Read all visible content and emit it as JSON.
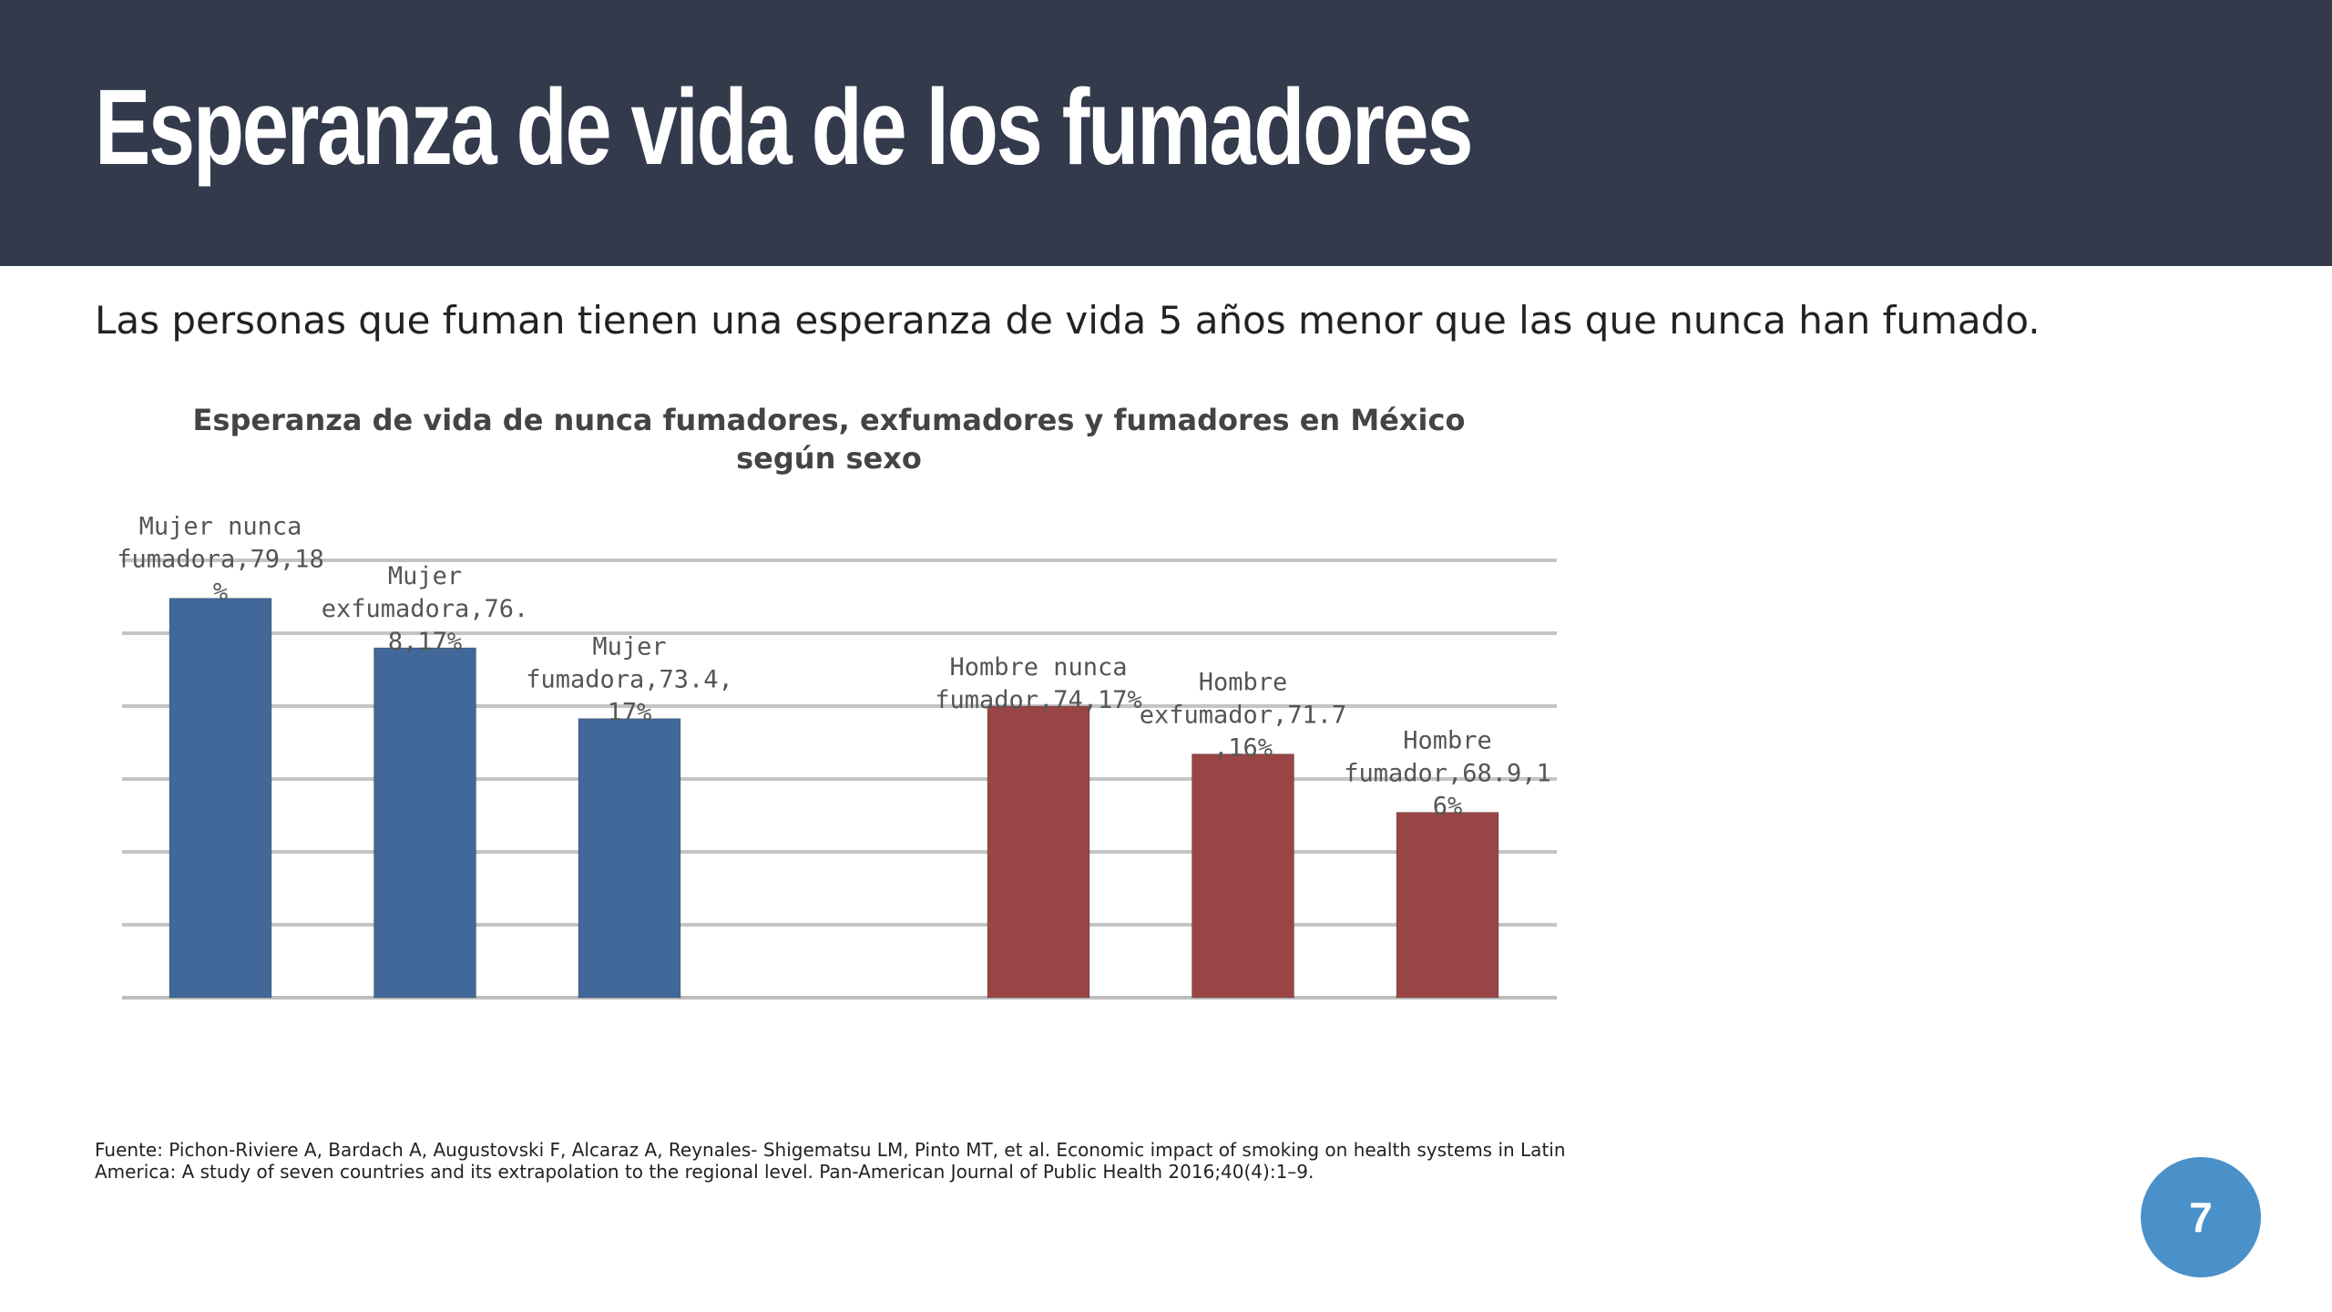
{
  "slide": {
    "title": "Esperanza de vida de los fumadores",
    "subtitle": "Las personas que fuman tienen una esperanza de vida 5 años menor que las que nunca han fumado.",
    "source": "Fuente: Pichon-Riviere A, Bardach A, Augustovski F, Alcaraz A, Reynales- Shigematsu LM, Pinto MT, et al. Economic impact of smoking on health systems in Latin America: A study of seven countries and its extrapolation to the regional level. Pan-American Journal of Public Health 2016;40(4):1–9.",
    "page_number": "7"
  },
  "colors": {
    "header_bg": "#323a4b",
    "mujer_bar": "#416899",
    "hombre_bar": "#9a4545",
    "gridline": "#c4c4c4",
    "badge": "#4a90c9"
  },
  "chart_data": {
    "type": "bar",
    "title": "Esperanza de vida de nunca fumadores, exfumadores y fumadores en México según sexo",
    "xlabel": "",
    "ylabel": "",
    "ylim": [
      60,
      81
    ],
    "grid": true,
    "categories": [
      "Mujer nunca fumadora",
      "Mujer exfumadora",
      "Mujer fumadora",
      "",
      "Hombre nunca fumador",
      "Hombre exfumador",
      "Hombre fumador"
    ],
    "values": [
      79.18,
      76.8,
      73.4,
      null,
      74,
      71.7,
      68.9
    ],
    "data_labels": [
      "Mujer nunca fumadora,79,18 %",
      "Mujer exfumadora,76. 8,17%",
      "Mujer fumadora,73.4, 17%",
      "",
      "Hombre nunca fumador,74,17%",
      "Hombre exfumador,71.7 ,16%",
      "Hombre fumador,68.9,1 6%"
    ],
    "bar_colors": [
      "#416899",
      "#416899",
      "#416899",
      null,
      "#9a4545",
      "#9a4545",
      "#9a4545"
    ]
  }
}
